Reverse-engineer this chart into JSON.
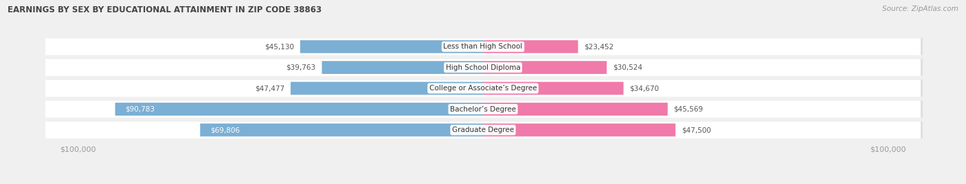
{
  "title": "EARNINGS BY SEX BY EDUCATIONAL ATTAINMENT IN ZIP CODE 38863",
  "source": "Source: ZipAtlas.com",
  "categories": [
    "Less than High School",
    "High School Diploma",
    "College or Associate’s Degree",
    "Bachelor’s Degree",
    "Graduate Degree"
  ],
  "male_values": [
    45130,
    39763,
    47477,
    90783,
    69806
  ],
  "female_values": [
    23452,
    30524,
    34670,
    45569,
    47500
  ],
  "male_color": "#7bafd4",
  "female_color": "#f07aaa",
  "max_val": 100000,
  "bg_color": "#f0f0f0",
  "row_bg_color": "#ffffff",
  "row_shadow_color": "#d0d0d8",
  "title_color": "#444444",
  "axis_label_color": "#999999",
  "legend_male_color": "#7bafd4",
  "legend_female_color": "#f07aaa",
  "label_outside_color": "#555555",
  "label_inside_color": "#ffffff",
  "cat_label_color": "#333333",
  "inside_threshold": 60000
}
